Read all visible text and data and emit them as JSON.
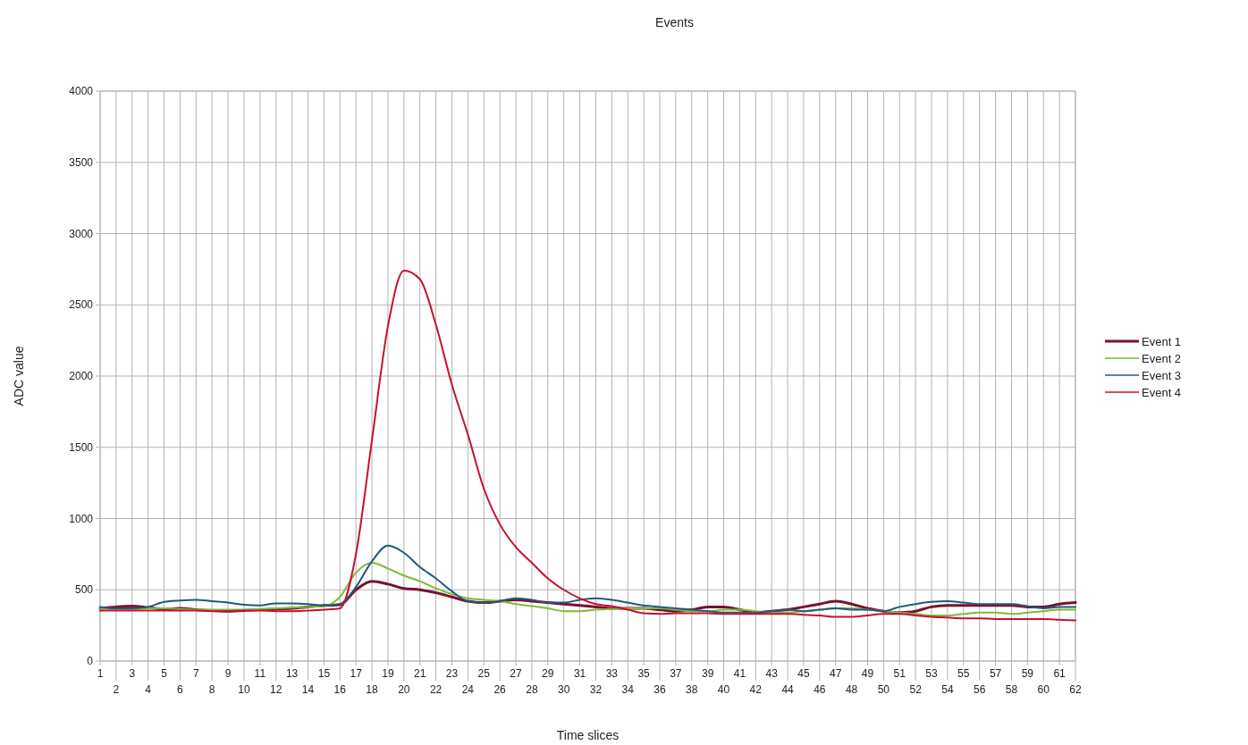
{
  "chart_data": {
    "type": "line",
    "title": "Events",
    "xlabel": "Time slices",
    "ylabel": "ADC value",
    "categories": [
      "1",
      "2",
      "3",
      "4",
      "5",
      "6",
      "7",
      "8",
      "9",
      "10",
      "11",
      "12",
      "13",
      "14",
      "15",
      "16",
      "17",
      "18",
      "19",
      "20",
      "21",
      "22",
      "23",
      "24",
      "25",
      "26",
      "27",
      "28",
      "29",
      "30",
      "31",
      "32",
      "33",
      "34",
      "35",
      "36",
      "37",
      "38",
      "39",
      "40",
      "41",
      "42",
      "43",
      "44",
      "45",
      "46",
      "47",
      "48",
      "49",
      "50",
      "51",
      "52",
      "53",
      "54",
      "55",
      "56",
      "57",
      "58",
      "59",
      "60",
      "61",
      "62"
    ],
    "ylim": [
      0,
      4000
    ],
    "yticks": [
      0,
      500,
      1000,
      1500,
      2000,
      2500,
      3000,
      3500,
      4000
    ],
    "grid": true,
    "legend": "right",
    "marker": "none",
    "line_style": "solid",
    "series": [
      {
        "name": "Event 1",
        "color": "#7b1030",
        "values": [
          370,
          380,
          385,
          375,
          365,
          370,
          360,
          355,
          350,
          355,
          360,
          365,
          370,
          380,
          390,
          395,
          500,
          560,
          540,
          510,
          500,
          480,
          450,
          420,
          410,
          420,
          430,
          420,
          410,
          400,
          390,
          380,
          370,
          370,
          370,
          360,
          350,
          360,
          380,
          380,
          360,
          340,
          350,
          360,
          380,
          400,
          420,
          400,
          370,
          350,
          340,
          350,
          380,
          390,
          390,
          390,
          390,
          390,
          380,
          380,
          400,
          410
        ]
      },
      {
        "name": "Event 2",
        "color": "#7fba3a",
        "values": [
          370,
          365,
          365,
          370,
          370,
          365,
          360,
          360,
          360,
          360,
          365,
          370,
          375,
          380,
          385,
          450,
          620,
          690,
          650,
          600,
          560,
          510,
          470,
          440,
          430,
          420,
          400,
          385,
          370,
          350,
          350,
          360,
          365,
          370,
          370,
          370,
          360,
          350,
          350,
          360,
          360,
          350,
          340,
          340,
          350,
          360,
          370,
          370,
          360,
          350,
          340,
          330,
          320,
          320,
          330,
          340,
          340,
          330,
          340,
          350,
          360,
          360
        ]
      },
      {
        "name": "Event 3",
        "color": "#1f5a7a",
        "values": [
          380,
          370,
          370,
          380,
          415,
          425,
          430,
          420,
          410,
          395,
          390,
          405,
          405,
          400,
          390,
          400,
          520,
          700,
          810,
          760,
          660,
          580,
          490,
          420,
          410,
          420,
          440,
          430,
          410,
          410,
          430,
          440,
          430,
          410,
          390,
          380,
          370,
          360,
          350,
          340,
          340,
          340,
          350,
          360,
          350,
          360,
          370,
          360,
          360,
          350,
          380,
          400,
          415,
          420,
          410,
          400,
          400,
          400,
          385,
          370,
          380,
          380
        ]
      },
      {
        "name": "Event 4",
        "color": "#c8102e",
        "values": [
          355,
          355,
          355,
          355,
          355,
          355,
          355,
          350,
          350,
          355,
          355,
          350,
          350,
          355,
          360,
          370,
          750,
          1550,
          2350,
          2740,
          2680,
          2360,
          1940,
          1590,
          1210,
          960,
          800,
          690,
          580,
          500,
          440,
          400,
          385,
          360,
          335,
          330,
          335,
          335,
          335,
          330,
          330,
          330,
          330,
          330,
          325,
          320,
          310,
          310,
          320,
          330,
          330,
          320,
          310,
          305,
          300,
          300,
          295,
          295,
          295,
          295,
          290,
          285
        ]
      }
    ]
  }
}
